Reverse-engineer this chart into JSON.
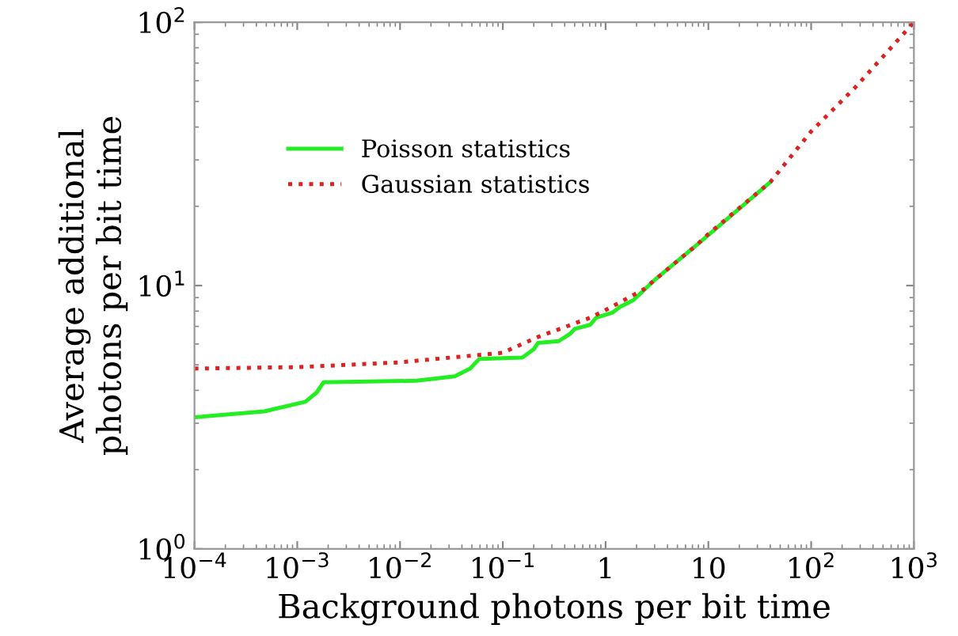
{
  "chart_data": {
    "type": "line",
    "xlabel": "Background photons per bit time",
    "ylabel": "Average additional\nphotons per bit time",
    "log": "xy",
    "grid": false,
    "legend": "top left",
    "marker": "none",
    "xlim": [
      0.0001,
      1000
    ],
    "ylim": [
      1,
      100
    ],
    "xticks": [
      {
        "value": 0.0001,
        "label": "10$^{−4}$"
      },
      {
        "value": 0.001,
        "label": "10$^{−3}$"
      },
      {
        "value": 0.01,
        "label": "10$^{−2}$"
      },
      {
        "value": 0.1,
        "label": "10$^{−1}$"
      },
      1,
      10,
      {
        "value": 100,
        "label": "10$^{2}$"
      },
      {
        "value": 1000,
        "label": "10$^{3}$"
      }
    ],
    "yticks": [
      {
        "value": 1,
        "label": "10$^{0}$"
      },
      {
        "value": 10,
        "label": "10$^{1}$"
      },
      {
        "value": 100,
        "label": "10$^{2}$"
      }
    ],
    "series": [
      {
        "name": "Poisson statistics",
        "color": "#22ee22",
        "line_style": "solid",
        "x": [
          0.0001,
          0.00048,
          0.0012,
          0.00155,
          0.0018,
          0.0145,
          0.034,
          0.048,
          0.059,
          0.155,
          0.2,
          0.22,
          0.35,
          0.45,
          0.5,
          0.71,
          0.81,
          1.17,
          1.38,
          1.86,
          3,
          7.6,
          40
        ],
        "values": [
          3.16,
          3.33,
          3.62,
          3.93,
          4.29,
          4.35,
          4.52,
          4.84,
          5.26,
          5.33,
          5.73,
          6.06,
          6.15,
          6.55,
          6.84,
          7.1,
          7.55,
          7.9,
          8.3,
          8.8,
          10.5,
          14.2,
          24.7
        ]
      },
      {
        "name": "Gaussian statistics",
        "color": "#dd2222",
        "line_style": "dotted",
        "x": [
          0.0001,
          0.001,
          0.01,
          0.1,
          0.22,
          0.71,
          1,
          2.34,
          3,
          7.6,
          10,
          40,
          100,
          270,
          1000
        ],
        "values": [
          4.84,
          4.9,
          5.11,
          5.56,
          6.38,
          7.55,
          8.07,
          9.66,
          10.5,
          14.2,
          15.7,
          24.7,
          38.5,
          56.7,
          100
        ]
      }
    ]
  }
}
